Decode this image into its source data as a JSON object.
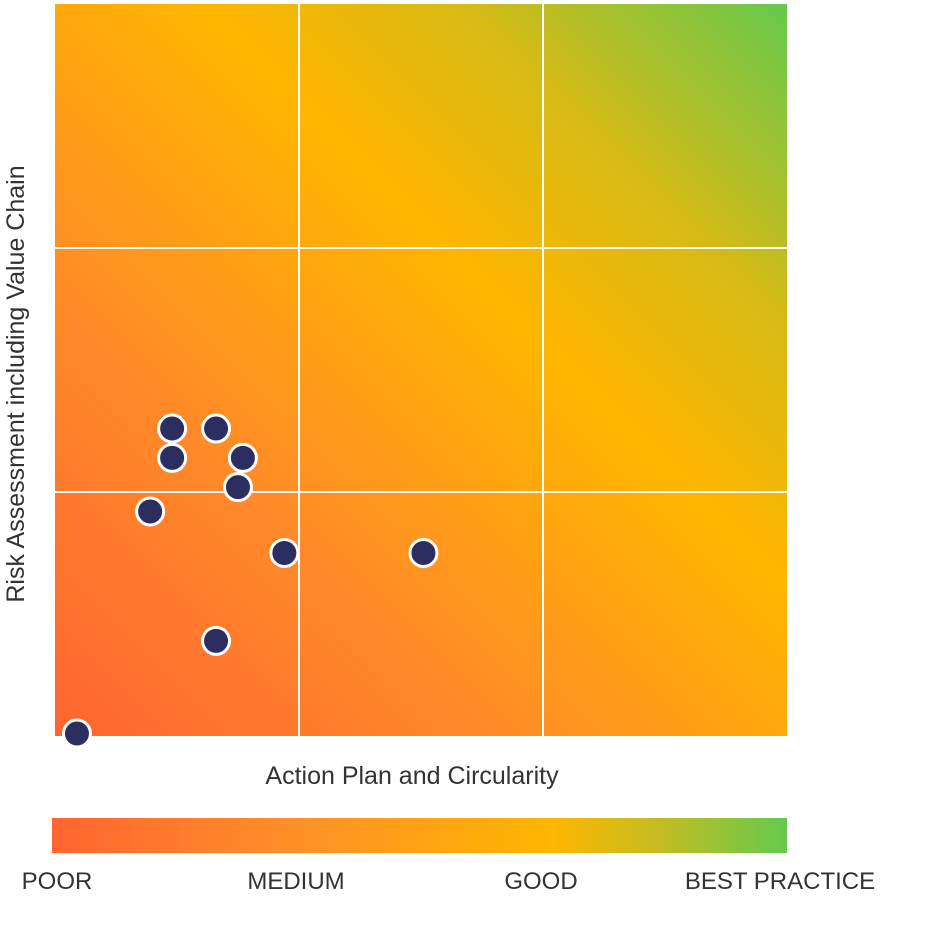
{
  "chart_data": {
    "type": "scatter",
    "xlabel": "Action Plan and Circularity",
    "ylabel": "Risk Assessment including Value Chain",
    "xlim": [
      0,
      3
    ],
    "ylim": [
      0,
      3
    ],
    "grid": true,
    "background": "diagonal gradient from poor (bottom-left) to best practice (top-right)",
    "points": [
      {
        "x": 0.09,
        "y": 0.01
      },
      {
        "x": 0.39,
        "y": 0.92
      },
      {
        "x": 0.48,
        "y": 1.14
      },
      {
        "x": 0.48,
        "y": 1.26
      },
      {
        "x": 0.66,
        "y": 1.26
      },
      {
        "x": 0.75,
        "y": 1.02
      },
      {
        "x": 0.77,
        "y": 1.14
      },
      {
        "x": 0.66,
        "y": 0.39
      },
      {
        "x": 0.94,
        "y": 0.75
      },
      {
        "x": 1.51,
        "y": 0.75
      }
    ],
    "legend": {
      "position": "bottom",
      "labels": [
        "POOR",
        "MEDIUM",
        "GOOD",
        "BEST PRACTICE"
      ]
    },
    "colors": {
      "poor": "#ff6532",
      "medium": "#ff9226",
      "good": "#ffb600",
      "best_practice": "#66c94e",
      "point_fill": "#2b2e5f",
      "point_stroke": "#ffffff",
      "grid": "#ffffff"
    }
  }
}
